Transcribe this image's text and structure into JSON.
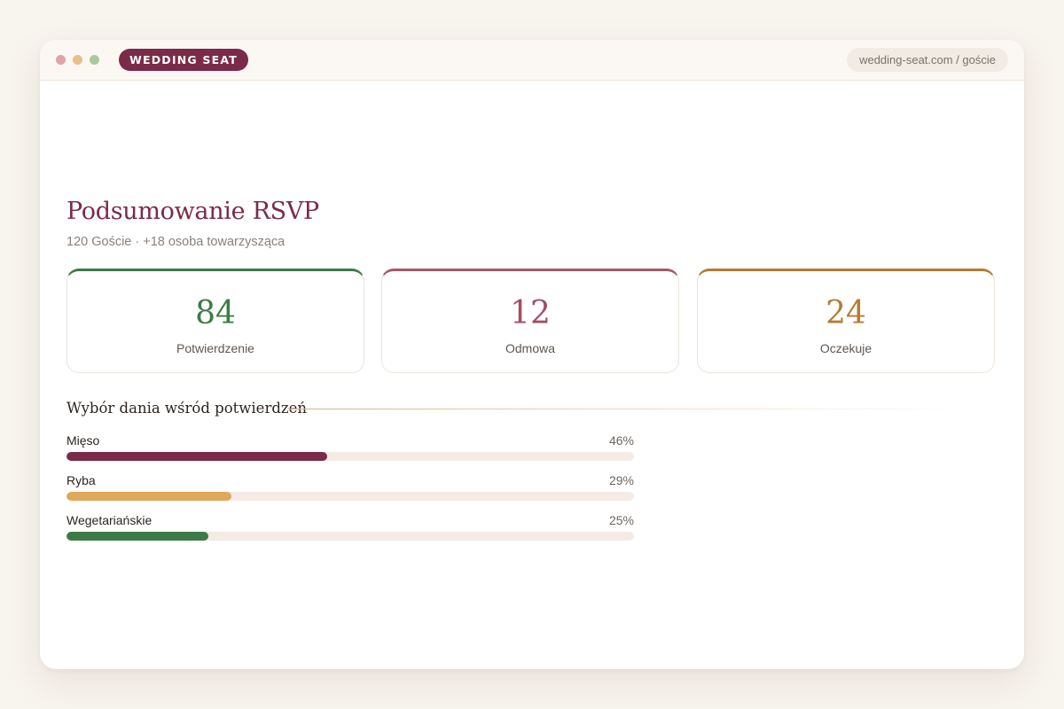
{
  "window": {
    "brand": "WEDDING SEAT",
    "url": "wedding-seat.com / goście"
  },
  "summary": {
    "title": "Podsumowanie RSVP",
    "subtitle": "120 Goście · +18 osoba towarzysząca",
    "cards": [
      {
        "value": "84",
        "label": "Potwierdzenie",
        "color": "#3d7b46"
      },
      {
        "value": "12",
        "label": "Odmowa",
        "color": "#a65768"
      },
      {
        "value": "24",
        "label": "Oczekuje",
        "color": "#b57c34"
      }
    ]
  },
  "meals": {
    "title": "Wybór dania wśród potwierdzeń",
    "items": [
      {
        "name": "Mięso",
        "percent_label": "46%",
        "percent": 46,
        "color": "#7a2b48"
      },
      {
        "name": "Ryba",
        "percent_label": "29%",
        "percent": 29,
        "color": "#e0a85a"
      },
      {
        "name": "Wegetariańskie",
        "percent_label": "25%",
        "percent": 25,
        "color": "#3d7b46"
      }
    ]
  }
}
